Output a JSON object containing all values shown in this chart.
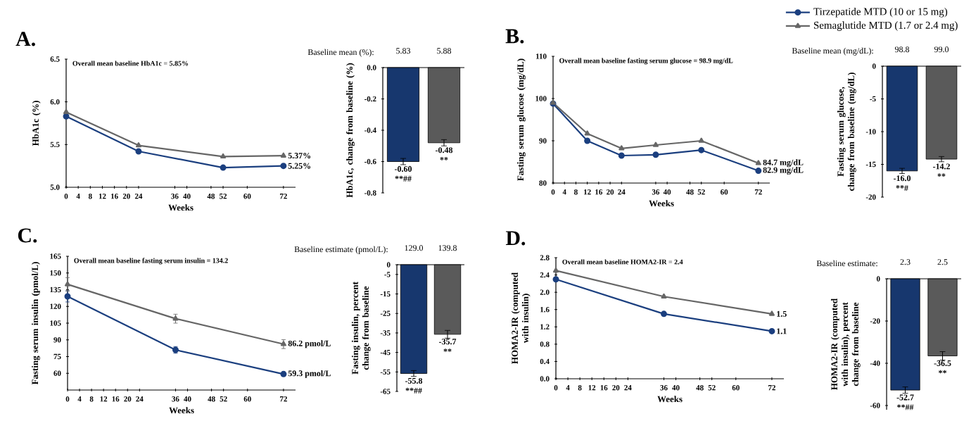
{
  "chart_data": [
    {
      "type": "line",
      "title": "A.",
      "subtitle": "Overall mean baseline HbA1c = 5.85%",
      "xlabel": "Weeks",
      "ylabel": "HbA1c (%)",
      "x": [
        0,
        24,
        52,
        72
      ],
      "xlim": [
        0,
        76
      ],
      "xticks": [
        0,
        4,
        8,
        12,
        16,
        20,
        24,
        36,
        40,
        48,
        52,
        60,
        72
      ],
      "ylim": [
        5.0,
        6.5
      ],
      "yticks": [
        {
          "value": 5.0,
          "label": "5.0"
        },
        {
          "value": 5.5,
          "label": "5.5"
        },
        {
          "value": 6.0,
          "label": "6.0"
        },
        {
          "value": 6.5,
          "label": "6.5"
        }
      ],
      "series": [
        {
          "color": "#1b3f7f",
          "marker": "circle",
          "values": [
            5.83,
            5.42,
            5.23,
            5.25
          ],
          "value_labels": [
            null,
            null,
            null,
            "5.25%"
          ]
        },
        {
          "color": "#666666",
          "marker": "triangle",
          "values": [
            5.88,
            5.49,
            5.36,
            5.37
          ],
          "value_labels": [
            null,
            null,
            null,
            "5.37%"
          ]
        }
      ]
    },
    {
      "type": "bar",
      "xlabel": "Baseline mean (%):",
      "ylabel": "HbA1c, change from baseline (%)",
      "categories": [
        "5.83",
        "5.88"
      ],
      "values": [
        -0.6,
        -0.48
      ],
      "errors": [
        0.02,
        0.02
      ],
      "colors": [
        "#17376e",
        "#5a5a5a"
      ],
      "ylim": [
        -0.8,
        0
      ],
      "yticks": [
        {
          "value": 0,
          "label": "0.0"
        },
        {
          "value": -0.2,
          "label": "-0.2"
        },
        {
          "value": -0.4,
          "label": "-0.4"
        },
        {
          "value": -0.6,
          "label": "-0.6"
        },
        {
          "value": -0.8,
          "label": "-0.8"
        }
      ],
      "value_labels": [
        "-0.60",
        "-0.48"
      ],
      "annotations": [
        "**##",
        "**"
      ]
    },
    {
      "type": "line",
      "title": "B.",
      "subtitle": "Overall mean baseline fasting serum glucose = 98.9 mg/dL",
      "xlabel": "Weeks",
      "ylabel": "Fasting serum glucose (mg/dL)",
      "x": [
        0,
        12,
        24,
        36,
        52,
        72
      ],
      "xlim": [
        0,
        76
      ],
      "xticks": [
        0,
        4,
        8,
        12,
        16,
        20,
        24,
        36,
        40,
        48,
        52,
        60,
        72
      ],
      "ylim": [
        80,
        110
      ],
      "yticks": [
        80,
        90,
        100,
        110
      ],
      "legend": "top right",
      "series": [
        {
          "name": "Tirzepatide MTD (10 or 15 mg)",
          "color": "#1b3f7f",
          "marker": "circle",
          "values": [
            98.8,
            90.0,
            86.5,
            86.7,
            87.8,
            82.9
          ],
          "value_labels": [
            null,
            null,
            null,
            null,
            null,
            "82.9 mg/dL"
          ]
        },
        {
          "name": "Semaglutide MTD (1.7 or 2.4 mg)",
          "color": "#666666",
          "marker": "triangle",
          "values": [
            99.0,
            91.7,
            88.2,
            89.0,
            90.0,
            84.7
          ],
          "value_labels": [
            null,
            null,
            null,
            null,
            null,
            "84.7 mg/dL"
          ]
        }
      ]
    },
    {
      "type": "bar",
      "xlabel": "Baseline mean (mg/dL):",
      "ylabel": "Fasting serum glucose, change from baseline (mg/dL)",
      "categories": [
        "98.8",
        "99.0"
      ],
      "values": [
        -16.0,
        -14.2
      ],
      "errors": [
        0.4,
        0.4
      ],
      "colors": [
        "#17376e",
        "#5a5a5a"
      ],
      "ylim": [
        -20,
        0
      ],
      "yticks": [
        0,
        -5,
        -10,
        -15,
        -20
      ],
      "value_labels": [
        "-16.0",
        "-14.2"
      ],
      "annotations": [
        "**#",
        "**"
      ]
    },
    {
      "type": "line",
      "title": "C.",
      "subtitle": "Overall mean baseline fasting serum insulin = 134.2",
      "xlabel": "Weeks",
      "ylabel": "Fasting serum insulin (pmol/L)",
      "x": [
        0,
        36,
        72
      ],
      "xlim": [
        0,
        76
      ],
      "xticks": [
        0,
        4,
        8,
        12,
        16,
        20,
        24,
        36,
        40,
        48,
        52,
        60,
        72
      ],
      "ylim": [
        45,
        165
      ],
      "yticks": [
        60,
        75,
        90,
        105,
        120,
        135,
        150,
        165
      ],
      "series": [
        {
          "color": "#1b3f7f",
          "marker": "circle",
          "values": [
            129.0,
            81,
            59.3
          ],
          "errors": [
            5,
            3,
            2
          ],
          "value_labels": [
            null,
            null,
            "59.3 pmol/L"
          ]
        },
        {
          "color": "#666666",
          "marker": "triangle",
          "values": [
            139.8,
            109,
            86.2
          ],
          "errors": [
            6,
            4,
            4
          ],
          "value_labels": [
            null,
            null,
            "86.2 pmol/L"
          ]
        }
      ]
    },
    {
      "type": "bar",
      "xlabel": "Baseline estimate (pmol/L):",
      "ylabel": "Fasting insulin, percent change from baseline",
      "categories": [
        "129.0",
        "139.8"
      ],
      "values": [
        -55.8,
        -35.7
      ],
      "errors": [
        1.5,
        2
      ],
      "colors": [
        "#17376e",
        "#5a5a5a"
      ],
      "ylim": [
        -65,
        0
      ],
      "yticks": [
        0,
        -5,
        -15,
        -25,
        -35,
        -45,
        -55,
        -65
      ],
      "value_labels": [
        "-55.8",
        "-35.7"
      ],
      "annotations": [
        "**##",
        "**"
      ]
    },
    {
      "type": "line",
      "title": "D.",
      "subtitle": "Overall mean baseline HOMA2-IR = 2.4",
      "xlabel": "Weeks",
      "ylabel": "HOMA2-IR (computed with insulin)",
      "x": [
        0,
        36,
        72
      ],
      "xlim": [
        0,
        76
      ],
      "xticks": [
        0,
        4,
        8,
        12,
        16,
        20,
        24,
        36,
        40,
        48,
        52,
        60,
        72
      ],
      "ylim": [
        0,
        2.8
      ],
      "yticks": [
        {
          "value": 0,
          "label": "0.0"
        },
        {
          "value": 0.4,
          "label": "0.4"
        },
        {
          "value": 0.8,
          "label": "0.8"
        },
        {
          "value": 1.2,
          "label": "1.2"
        },
        {
          "value": 1.6,
          "label": "1.6"
        },
        {
          "value": 2.0,
          "label": "2.0"
        },
        {
          "value": 2.4,
          "label": "2.4"
        },
        {
          "value": 2.8,
          "label": "2.8"
        }
      ],
      "series": [
        {
          "color": "#1b3f7f",
          "marker": "circle",
          "values": [
            2.3,
            1.5,
            1.1
          ],
          "value_labels": [
            null,
            null,
            "1.1"
          ]
        },
        {
          "color": "#666666",
          "marker": "triangle",
          "values": [
            2.5,
            1.9,
            1.5
          ],
          "value_labels": [
            null,
            null,
            "1.5"
          ]
        }
      ]
    },
    {
      "type": "bar",
      "xlabel": "Baseline estimate:",
      "ylabel": "HOMA2-IR (computed with insulin), percent change from baseline",
      "categories": [
        "2.3",
        "2.5"
      ],
      "values": [
        -52.7,
        -36.5
      ],
      "errors": [
        1.5,
        2
      ],
      "colors": [
        "#17376e",
        "#5a5a5a"
      ],
      "ylim": [
        -62,
        0
      ],
      "yticks": [
        0,
        -20,
        -40,
        -60
      ],
      "value_labels": [
        "-52.7",
        "-36.5"
      ],
      "annotations": [
        "**##",
        "**"
      ]
    }
  ]
}
